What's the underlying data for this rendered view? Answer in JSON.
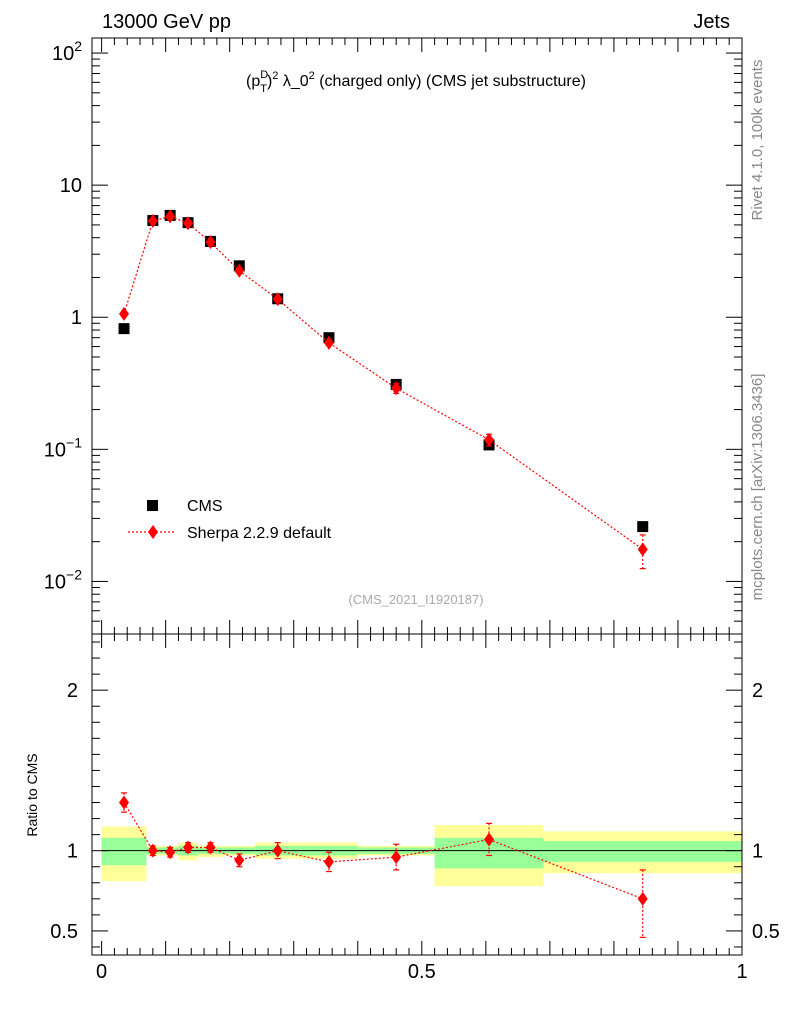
{
  "header": {
    "left": "13000 GeV pp",
    "right": "Jets"
  },
  "side_labels": {
    "rivet": "Rivet 4.1.0,  100k events",
    "mcplots": "mcplots.cern.ch [arXiv:1306.3436]"
  },
  "colors": {
    "data": "#000000",
    "mc": "#ff0000",
    "band_inner": "#99ff99",
    "band_outer": "#ffff99"
  },
  "chart_data": [
    {
      "type": "scatter",
      "panel": "main",
      "title_parts": {
        "base": "(p",
        "sup_d": "D",
        "sub_t": "T",
        "rest": ")",
        "sup_2": "2",
        "lambda": " λ_0",
        "sup_2b": "2",
        "tail": " (charged only) (CMS jet substructure)"
      },
      "analysis": "(CMS_2021_I1920187)",
      "yscale": "log",
      "ylim": [
        0.004,
        130
      ],
      "xlim": [
        -0.015,
        1.0
      ],
      "y_ticks": [
        {
          "value": 100,
          "base": "10",
          "exp": "2"
        },
        {
          "value": 10,
          "base": "10",
          "exp": ""
        },
        {
          "value": 1,
          "base": "1",
          "exp": ""
        },
        {
          "value": 0.1,
          "base": "10",
          "exp": "−1"
        },
        {
          "value": 0.01,
          "base": "10",
          "exp": "−2"
        }
      ],
      "legend": [
        {
          "label": "CMS",
          "marker": "square"
        },
        {
          "label": "Sherpa 2.2.9 default",
          "marker": "diamond"
        }
      ],
      "legend_position": "bottom-left",
      "series": [
        {
          "name": "CMS",
          "x": [
            0.035,
            0.08,
            0.107,
            0.135,
            0.17,
            0.215,
            0.275,
            0.355,
            0.46,
            0.605,
            0.845
          ],
          "y": [
            0.82,
            5.4,
            5.9,
            5.2,
            3.75,
            2.45,
            1.38,
            0.7,
            0.31,
            0.108,
            0.026
          ]
        },
        {
          "name": "Sherpa 2.2.9 default",
          "x": [
            0.035,
            0.08,
            0.107,
            0.135,
            0.17,
            0.215,
            0.275,
            0.355,
            0.46,
            0.605,
            0.845
          ],
          "y": [
            1.06,
            5.35,
            5.8,
            5.15,
            3.7,
            2.25,
            1.37,
            0.64,
            0.29,
            0.118,
            0.0175
          ],
          "yerr_low": [
            0.06,
            0.15,
            0.15,
            0.15,
            0.12,
            0.1,
            0.06,
            0.04,
            0.025,
            0.012,
            0.005
          ],
          "yerr_high": [
            0.06,
            0.15,
            0.15,
            0.15,
            0.12,
            0.1,
            0.06,
            0.04,
            0.025,
            0.012,
            0.005
          ]
        }
      ]
    },
    {
      "type": "scatter",
      "panel": "ratio",
      "ylabel": "Ratio to CMS",
      "ylim": [
        0.35,
        2.35
      ],
      "xlim": [
        -0.015,
        1.0
      ],
      "y_ticks": [
        0.5,
        1,
        2
      ],
      "y_tick_labels": [
        "0.5",
        "1",
        "2"
      ],
      "x_ticks": [
        0,
        0.5,
        1
      ],
      "x_tick_labels": [
        "0",
        "0.5",
        "1"
      ],
      "bands": [
        {
          "x0": 0.0,
          "x1": 0.07,
          "inner": [
            0.91,
            1.08
          ],
          "outer": [
            0.81,
            1.15
          ]
        },
        {
          "x0": 0.07,
          "x1": 0.12,
          "inner": [
            0.98,
            1.02
          ],
          "outer": [
            0.97,
            1.03
          ]
        },
        {
          "x0": 0.12,
          "x1": 0.15,
          "inner": [
            0.97,
            1.03
          ],
          "outer": [
            0.94,
            1.05
          ]
        },
        {
          "x0": 0.15,
          "x1": 0.19,
          "inner": [
            0.98,
            1.02
          ],
          "outer": [
            0.96,
            1.03
          ]
        },
        {
          "x0": 0.19,
          "x1": 0.24,
          "inner": [
            0.98,
            1.02
          ],
          "outer": [
            0.97,
            1.03
          ]
        },
        {
          "x0": 0.24,
          "x1": 0.31,
          "inner": [
            0.97,
            1.03
          ],
          "outer": [
            0.95,
            1.05
          ]
        },
        {
          "x0": 0.31,
          "x1": 0.4,
          "inner": [
            0.97,
            1.03
          ],
          "outer": [
            0.95,
            1.05
          ]
        },
        {
          "x0": 0.4,
          "x1": 0.52,
          "inner": [
            0.98,
            1.02
          ],
          "outer": [
            0.97,
            1.03
          ]
        },
        {
          "x0": 0.52,
          "x1": 0.69,
          "inner": [
            0.89,
            1.08
          ],
          "outer": [
            0.78,
            1.16
          ]
        },
        {
          "x0": 0.69,
          "x1": 1.0,
          "inner": [
            0.93,
            1.06
          ],
          "outer": [
            0.86,
            1.12
          ]
        }
      ],
      "series": [
        {
          "name": "Sherpa 2.2.9 default",
          "x": [
            0.035,
            0.08,
            0.107,
            0.135,
            0.17,
            0.215,
            0.275,
            0.355,
            0.46,
            0.605,
            0.845
          ],
          "y": [
            1.3,
            1.0,
            0.99,
            1.02,
            1.02,
            0.94,
            1.0,
            0.93,
            0.96,
            1.07,
            0.7
          ],
          "yerr_low": [
            0.06,
            0.03,
            0.03,
            0.03,
            0.03,
            0.04,
            0.05,
            0.06,
            0.08,
            0.1,
            0.24
          ],
          "yerr_high": [
            0.06,
            0.03,
            0.03,
            0.03,
            0.03,
            0.04,
            0.05,
            0.06,
            0.08,
            0.1,
            0.18
          ]
        }
      ]
    }
  ]
}
